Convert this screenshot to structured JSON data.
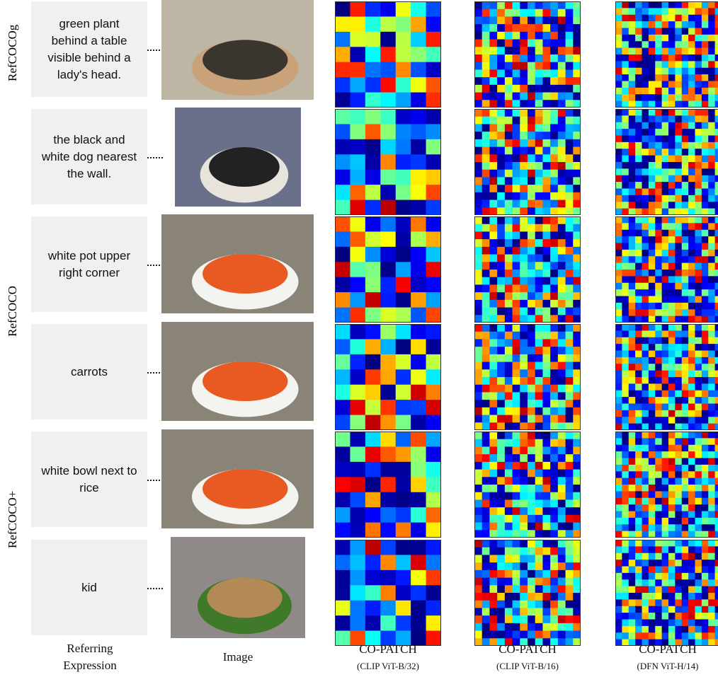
{
  "row_groups": [
    "RefCOCOg",
    "RefCOCO",
    "RefCOCO+"
  ],
  "rows": [
    {
      "expression": "green plant behind a table visible behind a lady's head."
    },
    {
      "expression": "the black and white dog nearest the wall."
    },
    {
      "expression": "white pot upper right corner"
    },
    {
      "expression": "carrots"
    },
    {
      "expression": "white bowl next to rice"
    },
    {
      "expression": "kid"
    }
  ],
  "columns": {
    "expression": [
      "Referring",
      "Expression"
    ],
    "image": "Image",
    "methods": [
      {
        "name": "CO-PATCH",
        "model": "(CLIP ViT-B/32)"
      },
      {
        "name": "CO-PATCH",
        "model": "(CLIP ViT-B/16)"
      },
      {
        "name": "CO-PATCH",
        "model": "(DFN ViT-H/14)"
      }
    ]
  }
}
